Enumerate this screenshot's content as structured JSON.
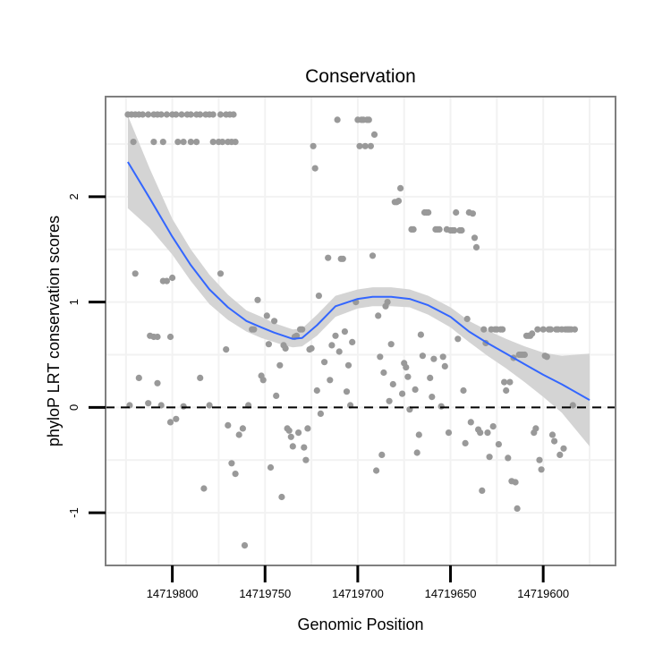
{
  "chart_data": {
    "type": "scatter",
    "title": "Conservation",
    "xlabel": "Genomic Position",
    "ylabel": "phyloP LRT conservation scores",
    "x_reversed": true,
    "xlim": [
      14719836,
      14719561
    ],
    "ylim": [
      -1.5,
      2.95
    ],
    "x_ticks": [
      {
        "value": 14719800,
        "label": "14719800"
      },
      {
        "value": 14719750,
        "label": "14719750"
      },
      {
        "value": 14719700,
        "label": "14719700"
      },
      {
        "value": 14719650,
        "label": "14719650"
      },
      {
        "value": 14719600,
        "label": "14719600"
      }
    ],
    "y_ticks": [
      {
        "value": -1,
        "label": "-1"
      },
      {
        "value": 0,
        "label": "0"
      },
      {
        "value": 1,
        "label": "1"
      },
      {
        "value": 2,
        "label": "2"
      }
    ],
    "reference_line": {
      "y": 0,
      "style": "dashed"
    },
    "grid": true,
    "colors": {
      "points": "#999999",
      "smooth": "#3366ff",
      "ribbon": "#d4d4d4",
      "panel_border": "#7f7f7f",
      "grid": "#f2f2f2"
    },
    "smooth": {
      "method": "loess",
      "x": [
        14719824,
        14719812,
        14719800,
        14719790,
        14719780,
        14719770,
        14719760,
        14719752,
        14719745,
        14719740,
        14719735,
        14719730,
        14719722,
        14719712,
        14719700,
        14719692,
        14719682,
        14719672,
        14719662,
        14719650,
        14719640,
        14719630,
        14719620,
        14719610,
        14719600,
        14719590,
        14719575
      ],
      "y": [
        2.33,
        1.98,
        1.62,
        1.35,
        1.12,
        0.95,
        0.82,
        0.76,
        0.71,
        0.68,
        0.65,
        0.66,
        0.78,
        0.96,
        1.03,
        1.05,
        1.05,
        1.03,
        0.97,
        0.86,
        0.72,
        0.61,
        0.51,
        0.41,
        0.31,
        0.22,
        0.07
      ],
      "lower": [
        1.89,
        1.7,
        1.45,
        1.2,
        0.98,
        0.83,
        0.72,
        0.66,
        0.62,
        0.59,
        0.57,
        0.58,
        0.68,
        0.86,
        0.94,
        0.96,
        0.96,
        0.95,
        0.88,
        0.76,
        0.62,
        0.49,
        0.37,
        0.24,
        0.1,
        -0.05,
        -0.37
      ],
      "upper": [
        2.77,
        2.26,
        1.79,
        1.5,
        1.26,
        1.07,
        0.92,
        0.86,
        0.8,
        0.77,
        0.74,
        0.75,
        0.88,
        1.06,
        1.12,
        1.14,
        1.14,
        1.12,
        1.06,
        0.95,
        0.82,
        0.73,
        0.65,
        0.58,
        0.52,
        0.49,
        0.51
      ]
    },
    "series": [
      {
        "name": "phyloP scores",
        "points": [
          [
            14719824,
            2.78
          ],
          [
            14719822,
            2.78
          ],
          [
            14719820,
            2.78
          ],
          [
            14719818,
            2.78
          ],
          [
            14719816,
            2.78
          ],
          [
            14719813,
            2.78
          ],
          [
            14719810,
            2.78
          ],
          [
            14719808,
            2.78
          ],
          [
            14719806,
            2.78
          ],
          [
            14719803,
            2.78
          ],
          [
            14719800,
            2.78
          ],
          [
            14719798,
            2.78
          ],
          [
            14719795,
            2.78
          ],
          [
            14719792,
            2.78
          ],
          [
            14719790,
            2.78
          ],
          [
            14719787,
            2.78
          ],
          [
            14719785,
            2.78
          ],
          [
            14719782,
            2.78
          ],
          [
            14719780,
            2.78
          ],
          [
            14719778,
            2.78
          ],
          [
            14719774,
            2.78
          ],
          [
            14719771,
            2.78
          ],
          [
            14719769,
            2.78
          ],
          [
            14719767,
            2.78
          ],
          [
            14719821,
            2.52
          ],
          [
            14719810,
            2.52
          ],
          [
            14719805,
            2.52
          ],
          [
            14719797,
            2.52
          ],
          [
            14719794,
            2.52
          ],
          [
            14719790,
            2.52
          ],
          [
            14719787,
            2.52
          ],
          [
            14719778,
            2.52
          ],
          [
            14719775,
            2.52
          ],
          [
            14719773,
            2.52
          ],
          [
            14719770,
            2.52
          ],
          [
            14719768,
            2.52
          ],
          [
            14719766,
            2.52
          ],
          [
            14719820,
            1.27
          ],
          [
            14719805,
            1.2
          ],
          [
            14719803,
            1.2
          ],
          [
            14719800,
            1.23
          ],
          [
            14719812,
            0.68
          ],
          [
            14719810,
            0.67
          ],
          [
            14719808,
            0.67
          ],
          [
            14719801,
            0.67
          ],
          [
            14719818,
            0.28
          ],
          [
            14719813,
            0.04
          ],
          [
            14719808,
            0.23
          ],
          [
            14719806,
            0.02
          ],
          [
            14719801,
            -0.14
          ],
          [
            14719798,
            -0.11
          ],
          [
            14719794,
            0.01
          ],
          [
            14719785,
            0.28
          ],
          [
            14719783,
            -0.77
          ],
          [
            14719780,
            0.02
          ],
          [
            14719823,
            0.02
          ],
          [
            14719774,
            1.27
          ],
          [
            14719771,
            0.55
          ],
          [
            14719770,
            -0.17
          ],
          [
            14719768,
            -0.53
          ],
          [
            14719766,
            -0.63
          ],
          [
            14719764,
            -0.26
          ],
          [
            14719762,
            -0.2
          ],
          [
            14719761,
            -1.31
          ],
          [
            14719759,
            0.02
          ],
          [
            14719757,
            0.74
          ],
          [
            14719756,
            0.74
          ],
          [
            14719754,
            1.02
          ],
          [
            14719752,
            0.3
          ],
          [
            14719751,
            0.26
          ],
          [
            14719749,
            0.87
          ],
          [
            14719748,
            0.6
          ],
          [
            14719747,
            -0.57
          ],
          [
            14719745,
            0.82
          ],
          [
            14719744,
            0.11
          ],
          [
            14719742,
            0.4
          ],
          [
            14719741,
            -0.85
          ],
          [
            14719740,
            0.59
          ],
          [
            14719739,
            0.56
          ],
          [
            14719738,
            -0.2
          ],
          [
            14719737,
            -0.22
          ],
          [
            14719736,
            -0.28
          ],
          [
            14719735,
            -0.37
          ],
          [
            14719734,
            0.67
          ],
          [
            14719733,
            0.68
          ],
          [
            14719732,
            -0.24
          ],
          [
            14719731,
            0.74
          ],
          [
            14719730,
            0.74
          ],
          [
            14719729,
            -0.38
          ],
          [
            14719728,
            -0.5
          ],
          [
            14719727,
            -0.2
          ],
          [
            14719726,
            0.55
          ],
          [
            14719725,
            0.56
          ],
          [
            14719724,
            2.48
          ],
          [
            14719723,
            2.27
          ],
          [
            14719722,
            0.16
          ],
          [
            14719721,
            1.06
          ],
          [
            14719720,
            -0.06
          ],
          [
            14719718,
            0.43
          ],
          [
            14719716,
            1.42
          ],
          [
            14719715,
            0.26
          ],
          [
            14719714,
            0.59
          ],
          [
            14719712,
            0.68
          ],
          [
            14719711,
            2.73
          ],
          [
            14719710,
            0.53
          ],
          [
            14719709,
            1.41
          ],
          [
            14719708,
            1.41
          ],
          [
            14719707,
            0.72
          ],
          [
            14719706,
            0.15
          ],
          [
            14719705,
            0.4
          ],
          [
            14719704,
            0.02
          ],
          [
            14719703,
            0.62
          ],
          [
            14719701,
            1.0
          ],
          [
            14719700,
            2.73
          ],
          [
            14719699,
            2.48
          ],
          [
            14719698,
            2.73
          ],
          [
            14719697,
            2.73
          ],
          [
            14719696,
            2.48
          ],
          [
            14719695,
            2.73
          ],
          [
            14719694,
            2.73
          ],
          [
            14719693,
            2.48
          ],
          [
            14719692,
            1.44
          ],
          [
            14719691,
            2.59
          ],
          [
            14719690,
            -0.6
          ],
          [
            14719689,
            0.87
          ],
          [
            14719688,
            0.48
          ],
          [
            14719687,
            -0.45
          ],
          [
            14719686,
            0.33
          ],
          [
            14719685,
            0.96
          ],
          [
            14719684,
            1.0
          ],
          [
            14719683,
            0.06
          ],
          [
            14719682,
            0.6
          ],
          [
            14719681,
            0.22
          ],
          [
            14719680,
            1.95
          ],
          [
            14719679,
            1.95
          ],
          [
            14719678,
            1.96
          ],
          [
            14719677,
            2.08
          ],
          [
            14719676,
            0.13
          ],
          [
            14719675,
            0.42
          ],
          [
            14719674,
            0.38
          ],
          [
            14719673,
            0.29
          ],
          [
            14719672,
            -0.02
          ],
          [
            14719671,
            1.69
          ],
          [
            14719670,
            1.69
          ],
          [
            14719669,
            0.17
          ],
          [
            14719668,
            -0.43
          ],
          [
            14719667,
            -0.26
          ],
          [
            14719666,
            0.69
          ],
          [
            14719665,
            0.49
          ],
          [
            14719664,
            1.85
          ],
          [
            14719663,
            1.85
          ],
          [
            14719662,
            1.85
          ],
          [
            14719661,
            0.28
          ],
          [
            14719660,
            0.1
          ],
          [
            14719659,
            0.46
          ],
          [
            14719658,
            1.69
          ],
          [
            14719657,
            1.69
          ],
          [
            14719656,
            1.69
          ],
          [
            14719655,
            0.01
          ],
          [
            14719654,
            0.48
          ],
          [
            14719653,
            0.39
          ],
          [
            14719652,
            1.69
          ],
          [
            14719651,
            -0.24
          ],
          [
            14719650,
            1.68
          ],
          [
            14719649,
            1.68
          ],
          [
            14719648,
            1.68
          ],
          [
            14719647,
            1.85
          ],
          [
            14719646,
            0.65
          ],
          [
            14719645,
            1.68
          ],
          [
            14719644,
            1.68
          ],
          [
            14719643,
            0.16
          ],
          [
            14719642,
            -0.34
          ],
          [
            14719641,
            0.84
          ],
          [
            14719640,
            1.85
          ],
          [
            14719639,
            -0.14
          ],
          [
            14719638,
            1.84
          ],
          [
            14719637,
            1.61
          ],
          [
            14719636,
            1.52
          ],
          [
            14719635,
            -0.21
          ],
          [
            14719634,
            -0.24
          ],
          [
            14719633,
            -0.79
          ],
          [
            14719632,
            0.74
          ],
          [
            14719631,
            0.61
          ],
          [
            14719630,
            -0.24
          ],
          [
            14719629,
            -0.47
          ],
          [
            14719628,
            0.74
          ],
          [
            14719627,
            -0.18
          ],
          [
            14719626,
            0.74
          ],
          [
            14719625,
            0.74
          ],
          [
            14719624,
            -0.35
          ],
          [
            14719623,
            0.74
          ],
          [
            14719622,
            0.74
          ],
          [
            14719621,
            0.24
          ],
          [
            14719620,
            0.16
          ],
          [
            14719619,
            -0.48
          ],
          [
            14719618,
            0.24
          ],
          [
            14719617,
            -0.7
          ],
          [
            14719616,
            0.47
          ],
          [
            14719615,
            -0.71
          ],
          [
            14719614,
            -0.96
          ],
          [
            14719613,
            0.5
          ],
          [
            14719612,
            0.5
          ],
          [
            14719611,
            0.5
          ],
          [
            14719610,
            0.5
          ],
          [
            14719609,
            0.68
          ],
          [
            14719608,
            0.68
          ],
          [
            14719607,
            0.68
          ],
          [
            14719606,
            0.7
          ],
          [
            14719605,
            -0.24
          ],
          [
            14719604,
            -0.2
          ],
          [
            14719603,
            0.74
          ],
          [
            14719602,
            -0.5
          ],
          [
            14719601,
            -0.59
          ],
          [
            14719600,
            0.74
          ],
          [
            14719599,
            0.49
          ],
          [
            14719598,
            0.48
          ],
          [
            14719597,
            0.74
          ],
          [
            14719596,
            0.74
          ],
          [
            14719595,
            -0.26
          ],
          [
            14719594,
            -0.32
          ],
          [
            14719593,
            0.74
          ],
          [
            14719592,
            0.74
          ],
          [
            14719591,
            -0.45
          ],
          [
            14719590,
            0.74
          ],
          [
            14719589,
            -0.39
          ],
          [
            14719588,
            0.74
          ],
          [
            14719587,
            0.74
          ],
          [
            14719586,
            0.74
          ],
          [
            14719585,
            0.74
          ],
          [
            14719584,
            0.02
          ],
          [
            14719583,
            0.74
          ]
        ]
      }
    ]
  }
}
